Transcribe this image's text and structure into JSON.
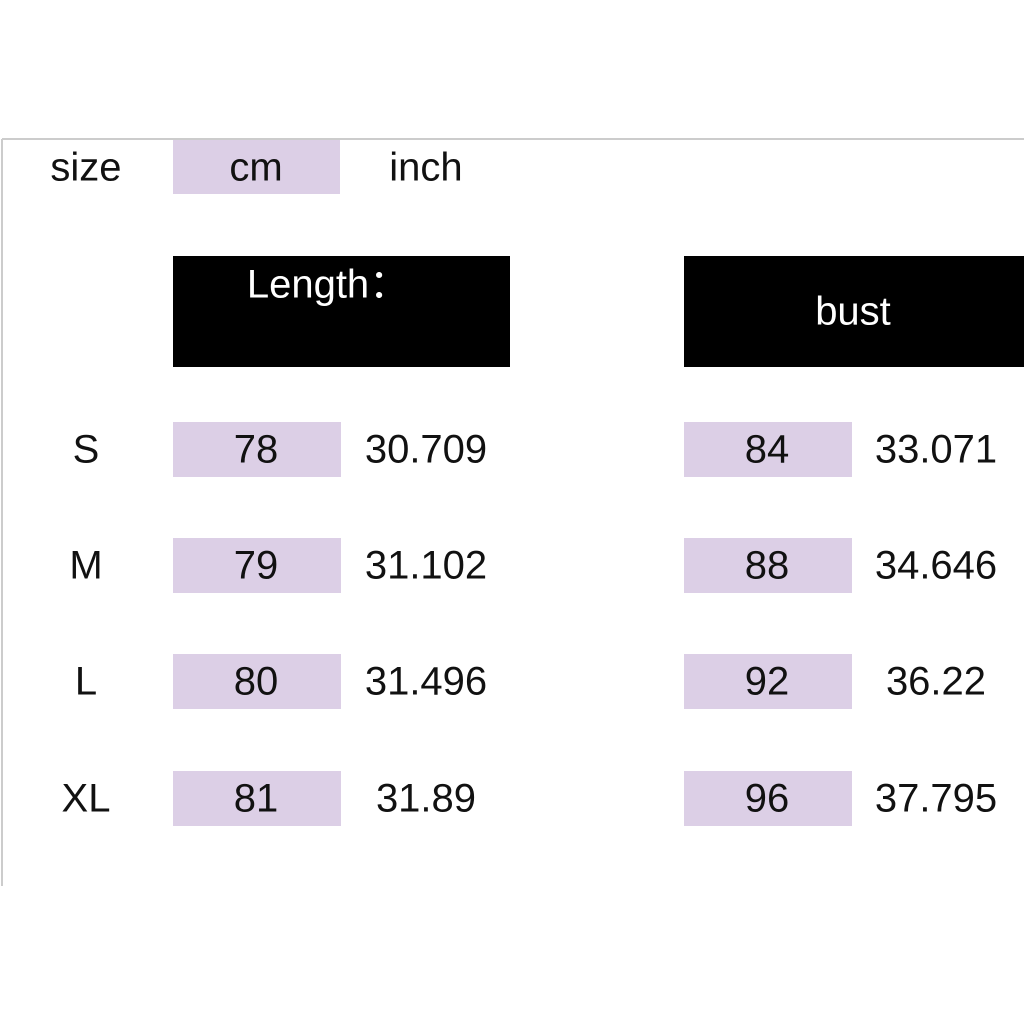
{
  "header": {
    "size": "size",
    "cm": "cm",
    "inch": "inch"
  },
  "groups": [
    "Length：",
    "bust"
  ],
  "table": {
    "rows": [
      [
        "S",
        "78",
        "30.709",
        "84",
        "33.071"
      ],
      [
        "M",
        "79",
        "31.102",
        "88",
        "34.646"
      ],
      [
        "L",
        "80",
        "31.496",
        "92",
        "36.22"
      ],
      [
        "XL",
        "81",
        "31.89",
        "96",
        "37.795"
      ]
    ]
  }
}
